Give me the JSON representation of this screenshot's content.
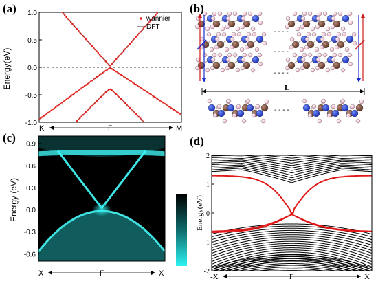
{
  "panels": {
    "a": {
      "label": "(a)"
    },
    "b": {
      "label": "(b)"
    },
    "c": {
      "label": "(c)"
    },
    "d": {
      "label": "(d)"
    }
  },
  "colors": {
    "wannier": "#e8201a",
    "dft": "#505050",
    "atom_blue": "#1f3fd1",
    "atom_brown": "#7a4a3a",
    "atom_pink": "#f2c2d2",
    "cyan": "#25e0e0",
    "red_band": "#e01818"
  },
  "chart_data": [
    {
      "type": "line",
      "panel": "(a)",
      "ylabel": "Energy(eV)",
      "ylim": [
        -1.0,
        1.0
      ],
      "yticks": [
        "1.0",
        "0.5",
        "0.0",
        "-0.5",
        "-1.0"
      ],
      "xticks": [
        "K",
        "Γ",
        "M"
      ],
      "legend": {
        "position": "top-right",
        "entries": [
          "wannier",
          "DFT"
        ]
      },
      "series": [
        {
          "name": "wannier",
          "style": "dots",
          "x": [
            -1,
            -0.5,
            0,
            0.5,
            1
          ],
          "conduction": [
            1.0,
            0.32,
            0.02,
            0.32,
            1.0
          ],
          "valence": [
            -1.0,
            -0.35,
            -0.02,
            -0.3,
            -0.95
          ]
        },
        {
          "name": "DFT",
          "style": "line",
          "x": [
            -1,
            -0.5,
            0,
            0.5,
            1
          ],
          "conduction": [
            1.0,
            0.32,
            0.02,
            0.32,
            1.0
          ],
          "valence": [
            -1.0,
            -0.35,
            -0.02,
            -0.3,
            -0.95
          ]
        }
      ]
    },
    {
      "type": "heatmap",
      "panel": "(c)",
      "ylabel": "Energy (eV)",
      "ylim": [
        -0.7,
        1.0
      ],
      "yticks": [
        "0.9",
        "0.6",
        "0.3",
        "0.0",
        "-0.3",
        "-0.6"
      ],
      "xticks": [
        "X",
        "Γ",
        "X"
      ],
      "colorbar": true
    },
    {
      "type": "line",
      "panel": "(d)",
      "ylabel": "Energy(eV)",
      "ylim": [
        -2,
        2
      ],
      "yticks": [
        "2",
        "1",
        "0",
        "-1",
        "-2"
      ],
      "xticks": [
        "-X",
        "Γ",
        "X"
      ],
      "edge_state": {
        "x": [
          -1,
          -0.5,
          0,
          0.5,
          1
        ],
        "upper": [
          1.3,
          1.25,
          0.0,
          1.25,
          1.3
        ],
        "lower": [
          -0.7,
          -0.55,
          0.0,
          -0.55,
          -0.7
        ]
      }
    }
  ],
  "structure": {
    "length_label": "L",
    "dots": "- - - -"
  }
}
